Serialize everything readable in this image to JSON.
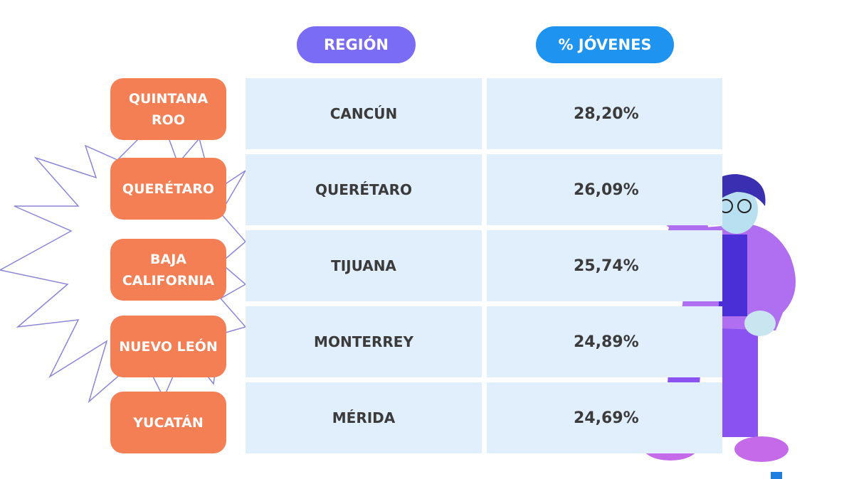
{
  "header": {
    "columns": [
      "REGIÓN",
      "% JÓVENES"
    ]
  },
  "table": {
    "rows": [
      [
        "QUINTANA ROO",
        "CANCÚN",
        "28,20%"
      ],
      [
        "QUERÉTARO",
        "QUERÉTARO",
        "26,09%"
      ],
      [
        "BAJA CALIFORNIA",
        "TIJUANA",
        "25,74%"
      ],
      [
        "NUEVO LEÓN",
        "MONTERREY",
        "24,89%"
      ],
      [
        "YUCATÁN",
        "MÉRIDA",
        "24,69%"
      ]
    ]
  }
}
